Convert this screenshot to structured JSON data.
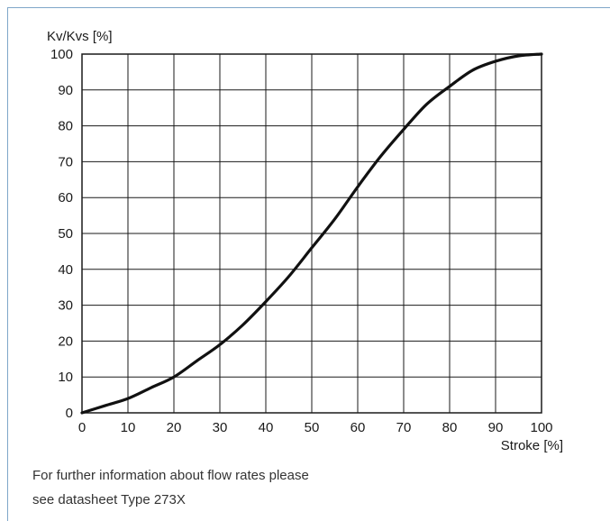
{
  "chart_data": {
    "type": "line",
    "title": "",
    "xlabel": "Stroke [%]",
    "ylabel": "Kv/Kvs [%]",
    "xlim": [
      0,
      100
    ],
    "ylim": [
      0,
      100
    ],
    "x_ticks": [
      0,
      10,
      20,
      30,
      40,
      50,
      60,
      70,
      80,
      90,
      100
    ],
    "y_ticks": [
      0,
      10,
      20,
      30,
      40,
      50,
      60,
      70,
      80,
      90,
      100
    ],
    "grid": true,
    "series": [
      {
        "x": [
          0,
          5,
          10,
          15,
          20,
          25,
          30,
          35,
          40,
          45,
          50,
          55,
          60,
          65,
          70,
          75,
          80,
          85,
          90,
          95,
          100
        ],
        "values": [
          0,
          2,
          4,
          7,
          10,
          14.5,
          19,
          24.5,
          31,
          38,
          46,
          54,
          63,
          71.5,
          79,
          86,
          91,
          95.5,
          98,
          99.5,
          100
        ]
      }
    ]
  },
  "note": {
    "line1": "For further information about flow rates please",
    "line2": "see datasheet Type 273X"
  },
  "colors": {
    "frame": "#7fa7c9",
    "line": "#111111",
    "grid": "#1a1a1a"
  }
}
